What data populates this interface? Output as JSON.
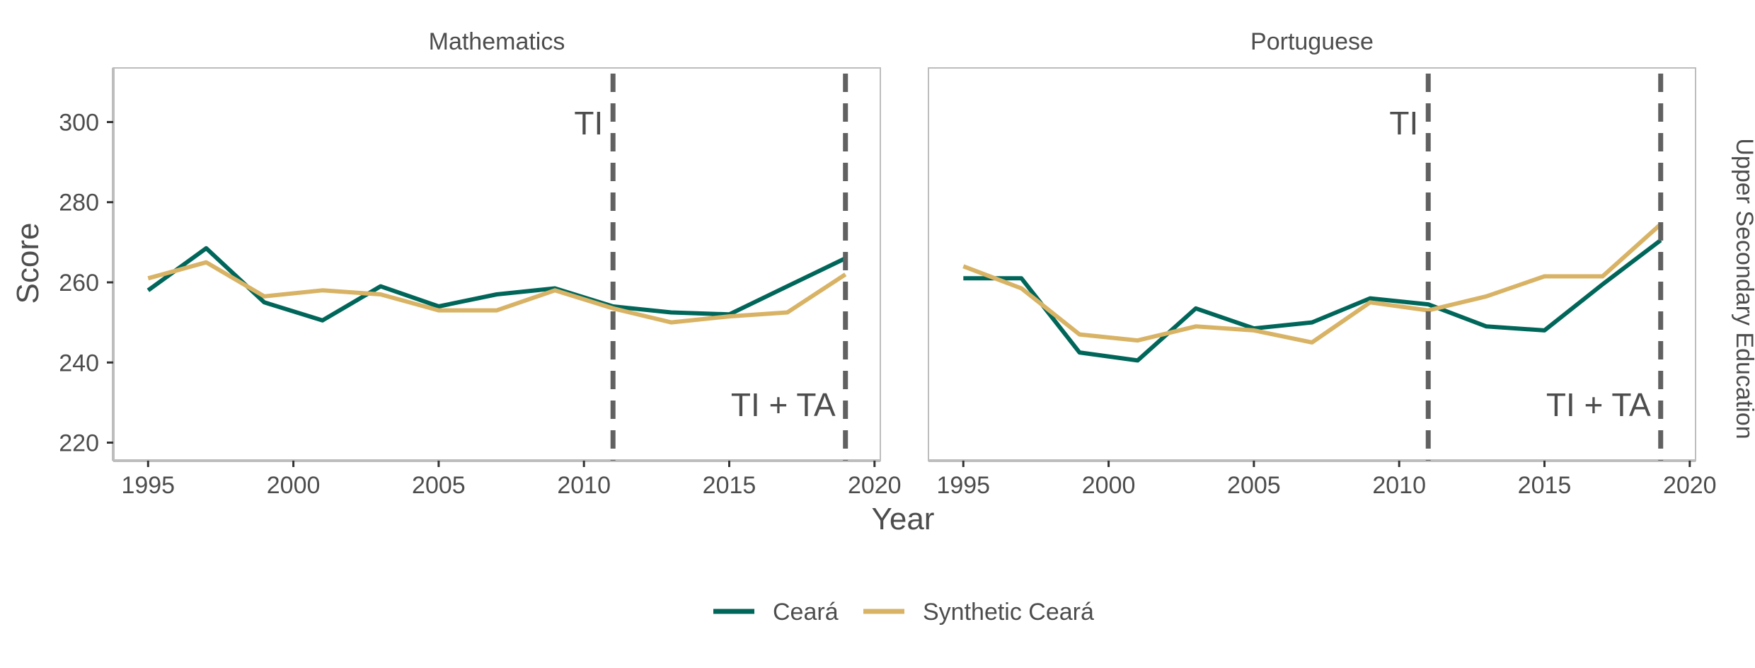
{
  "chart_data": {
    "type": "line",
    "ylabel": "Score",
    "xlabel": "Year",
    "row_strip": "Upper Secondary Education",
    "xlim": [
      1993.8,
      2020.2
    ],
    "ylim": [
      215.5,
      313.5
    ],
    "x_ticks": [
      "1995",
      "2000",
      "2005",
      "2010",
      "2015",
      "2020"
    ],
    "y_ticks": [
      "220",
      "240",
      "260",
      "280",
      "300"
    ],
    "legend": {
      "position": "bottom",
      "entries": [
        {
          "label": "Ceará",
          "color": "#00665a"
        },
        {
          "label": "Synthetic Ceará",
          "color": "#d8b365"
        }
      ]
    },
    "panels": [
      {
        "title": "Mathematics",
        "vlines": [
          {
            "x": 2011,
            "label": "TI"
          },
          {
            "x": 2019,
            "label": "TI + TA"
          }
        ],
        "series": [
          {
            "name": "Ceará",
            "color": "#00665a",
            "x": [
              1995,
              1997,
              1999,
              2001,
              2003,
              2005,
              2007,
              2009,
              2011,
              2013,
              2015,
              2017,
              2019
            ],
            "values": [
              258,
              268.5,
              255,
              250.5,
              259,
              254,
              257,
              258.5,
              254,
              252.5,
              252,
              259,
              266
            ]
          },
          {
            "name": "Synthetic Ceará",
            "color": "#d8b365",
            "x": [
              1995,
              1997,
              1999,
              2001,
              2003,
              2005,
              2007,
              2009,
              2011,
              2013,
              2015,
              2017,
              2019
            ],
            "values": [
              261,
              265,
              256.5,
              258,
              257,
              253,
              253,
              258,
              253.5,
              250,
              251.5,
              252.5,
              262
            ]
          }
        ]
      },
      {
        "title": "Portuguese",
        "vlines": [
          {
            "x": 2011,
            "label": "TI"
          },
          {
            "x": 2019,
            "label": "TI + TA"
          }
        ],
        "series": [
          {
            "name": "Ceará",
            "color": "#00665a",
            "x": [
              1995,
              1997,
              1999,
              2001,
              2003,
              2005,
              2007,
              2009,
              2011,
              2013,
              2015,
              2017,
              2019
            ],
            "values": [
              261,
              261,
              242.5,
              240.5,
              253.5,
              248.5,
              250,
              256,
              254.5,
              249,
              248,
              259.5,
              270.5
            ]
          },
          {
            "name": "Synthetic Ceará",
            "color": "#d8b365",
            "x": [
              1995,
              1997,
              1999,
              2001,
              2003,
              2005,
              2007,
              2009,
              2011,
              2013,
              2015,
              2017,
              2019
            ],
            "values": [
              264,
              258.5,
              247,
              245.5,
              249,
              248,
              245,
              255,
              253,
              256.5,
              261.5,
              261.5,
              274.5
            ]
          }
        ]
      }
    ]
  }
}
